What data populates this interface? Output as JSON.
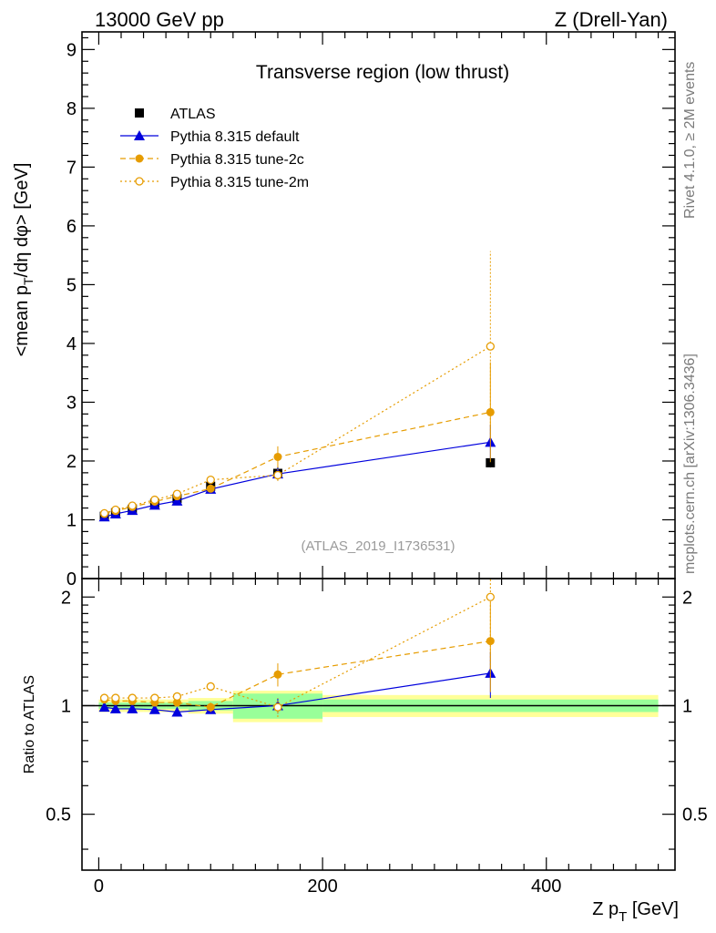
{
  "header": {
    "left": "13000 GeV pp",
    "right": "Z (Drell-Yan)"
  },
  "side_text": {
    "rivet": "Rivet 4.1.0, ≥ 2M events",
    "mcplots": "mcplots.cern.ch [arXiv:1306.3436]"
  },
  "colors": {
    "atlas": "#000000",
    "default": "#0000dd",
    "tune2c": "#e69c00",
    "tune2m": "#e69c00",
    "band_inner": "#99ff99",
    "band_outer": "#ffff99"
  },
  "chart_data": {
    "type": "line",
    "title": "Transverse region (low thrust)",
    "watermark": "(ATLAS_2019_I1736531)",
    "xlabel": "Z p",
    "xlabel_sub": "T",
    "xlabel_unit": " [GeV]",
    "ylabel": "<mean p",
    "ylabel_sub": "T",
    "ylabel_rest": "/dη dφ> [GeV]",
    "ratio_ylabel": "Ratio to ATLAS",
    "xlim": [
      -15,
      515
    ],
    "ylim": [
      0,
      9.3
    ],
    "ratio_ylim": [
      0.35,
      2.25
    ],
    "x_ticks": [
      0,
      200,
      400
    ],
    "x_tick_labels": [
      "0",
      "200",
      "400"
    ],
    "y_ticks": [
      0,
      1,
      2,
      3,
      4,
      5,
      6,
      7,
      8,
      9
    ],
    "y_tick_labels": [
      "0",
      "1",
      "2",
      "3",
      "4",
      "5",
      "6",
      "7",
      "8",
      "9"
    ],
    "ratio_ticks": [
      0.5,
      1,
      2
    ],
    "ratio_tick_labels": [
      "0.5",
      "1",
      "2"
    ],
    "x": [
      5,
      15,
      30,
      50,
      70,
      100,
      160,
      350
    ],
    "x_bins": [
      [
        0,
        10
      ],
      [
        10,
        20
      ],
      [
        20,
        40
      ],
      [
        40,
        60
      ],
      [
        60,
        80
      ],
      [
        80,
        120
      ],
      [
        120,
        200
      ],
      [
        200,
        500
      ]
    ],
    "legend_position": "top-left",
    "series": [
      {
        "name": "ATLAS",
        "marker": "square",
        "line": "none",
        "values": [
          1.06,
          1.12,
          1.18,
          1.28,
          1.36,
          1.57,
          1.79,
          1.97
        ],
        "errors": [
          0.02,
          0.02,
          0.03,
          0.03,
          0.04,
          0.05,
          0.12,
          0.08
        ],
        "ratio_band_inner": [
          0.02,
          0.02,
          0.02,
          0.02,
          0.02,
          0.03,
          0.08,
          0.04
        ],
        "ratio_band_outer": [
          0.04,
          0.04,
          0.04,
          0.04,
          0.04,
          0.05,
          0.1,
          0.07
        ]
      },
      {
        "name": "Pythia 8.315 default",
        "marker": "triangle",
        "line": "solid",
        "values": [
          1.05,
          1.1,
          1.16,
          1.25,
          1.32,
          1.52,
          1.78,
          2.32
        ],
        "errors": [
          0.02,
          0.02,
          0.02,
          0.03,
          0.03,
          0.05,
          0.1,
          0.3
        ],
        "ratio": [
          0.99,
          0.98,
          0.98,
          0.975,
          0.96,
          0.975,
          1.0,
          1.23
        ],
        "ratio_errors": [
          0.01,
          0.01,
          0.01,
          0.01,
          0.01,
          0.02,
          0.05,
          0.18
        ]
      },
      {
        "name": "Pythia 8.315 tune-2c",
        "marker": "circle",
        "line": "dashed",
        "values": [
          1.1,
          1.15,
          1.22,
          1.31,
          1.4,
          1.53,
          2.07,
          2.83
        ],
        "errors": [
          0.02,
          0.02,
          0.03,
          0.03,
          0.04,
          0.06,
          0.18,
          0.85
        ],
        "ratio": [
          1.04,
          1.03,
          1.03,
          1.02,
          1.02,
          0.99,
          1.22,
          1.51
        ],
        "ratio_errors": [
          0.01,
          0.01,
          0.01,
          0.02,
          0.02,
          0.03,
          0.09,
          0.42
        ]
      },
      {
        "name": "Pythia 8.315 tune-2m",
        "marker": "open-circle",
        "line": "dotted",
        "values": [
          1.11,
          1.17,
          1.24,
          1.34,
          1.44,
          1.68,
          1.76,
          3.95
        ],
        "errors": [
          0.02,
          0.02,
          0.03,
          0.03,
          0.04,
          0.06,
          0.1,
          1.62
        ],
        "ratio": [
          1.05,
          1.05,
          1.05,
          1.05,
          1.06,
          1.13,
          0.99,
          2.0
        ],
        "ratio_errors": [
          0.01,
          0.01,
          0.01,
          0.02,
          0.02,
          0.03,
          0.06,
          0.82
        ]
      }
    ]
  }
}
